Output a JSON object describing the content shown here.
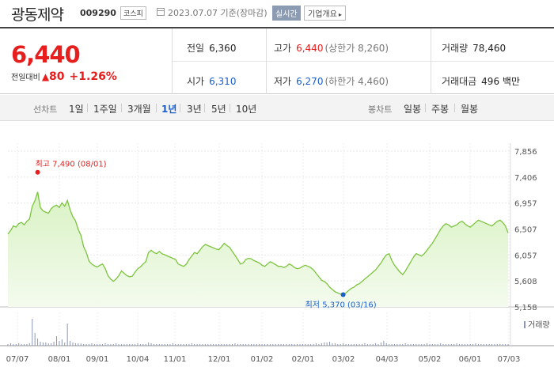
{
  "header": {
    "stock_name": "광동제약",
    "stock_code": "009290",
    "market_badge": "코스피",
    "date_text": "2023.07.07 기준(장마감)",
    "live_badge": "실시간",
    "company_badge": "기업개요"
  },
  "summary": {
    "price": "6,440",
    "change_label": "전일대비",
    "change_arrow": "▲",
    "change_amount": "80",
    "change_percent": "+1.26%",
    "prev_close_label": "전일",
    "prev_close": "6,360",
    "high_label": "고가",
    "high": "6,440",
    "upper_limit": "(상한가 8,260)",
    "volume_label": "거래량",
    "volume": "78,460",
    "open_label": "시가",
    "open": "6,310",
    "low_label": "저가",
    "low": "6,270",
    "lower_limit": "(하한가 4,460)",
    "amount_label": "거래대금",
    "amount": "496 백만"
  },
  "tabs": {
    "line_label": "선차트",
    "line_items": [
      "1일",
      "1주일",
      "3개월",
      "1년",
      "3년",
      "5년",
      "10년"
    ],
    "active_index": 3,
    "candle_label": "봉차트",
    "candle_items": [
      "일봉",
      "주봉",
      "월봉"
    ]
  },
  "colors": {
    "up": "#e61e1e",
    "down": "#1a5ecc",
    "line": "#7cc43e",
    "fill": "#d9f2c4"
  },
  "chart_data": {
    "type": "area",
    "y_ticks": [
      "7,856",
      "7,406",
      "6,957",
      "6,507",
      "6,057",
      "5,608",
      "5,158"
    ],
    "ylim": [
      5158,
      7856
    ],
    "x_ticks": [
      "07/07",
      "08/01",
      "09/01",
      "10/04",
      "11/01",
      "12/01",
      "01/02",
      "02/01",
      "03/02",
      "04/03",
      "05/02",
      "06/01",
      "07/03"
    ],
    "max_annotation": "최고 7,490 (08/01)",
    "min_annotation": "최저 5,370 (03/16)",
    "max_value": 7490,
    "min_value": 5370,
    "volume_legend": "거래량",
    "series": [
      {
        "values": [
          6420,
          6480,
          6560,
          6540,
          6600,
          6620,
          6580,
          6640,
          6680,
          6900,
          7000,
          7150,
          6880,
          6820,
          6800,
          6780,
          6860,
          6900,
          6920,
          6880,
          6960,
          6900,
          7000,
          6840,
          6720,
          6650,
          6500,
          6400,
          6200,
          6100,
          5950,
          5900,
          5870,
          5850,
          5880,
          5900,
          5820,
          5700,
          5640,
          5600,
          5640,
          5700,
          5780,
          5740,
          5700,
          5680,
          5690,
          5760,
          5820,
          5850,
          5900,
          5940,
          6100,
          6140,
          6100,
          6080,
          6120,
          6080,
          6060,
          6040,
          6020,
          6000,
          5980,
          5900,
          5880,
          5860,
          5900,
          5980,
          6040,
          6100,
          6080,
          6140,
          6200,
          6240,
          6220,
          6200,
          6180,
          6160,
          6150,
          6200,
          6260,
          6220,
          6190,
          6120,
          6050,
          5980,
          5900,
          5920,
          5980,
          6000,
          5990,
          5960,
          5940,
          5920,
          5880,
          5860,
          5900,
          5940,
          5920,
          5890,
          5860,
          5860,
          5840,
          5860,
          5900,
          5880,
          5840,
          5820,
          5830,
          5860,
          5880,
          5860,
          5840,
          5800,
          5740,
          5680,
          5620,
          5600,
          5560,
          5500,
          5460,
          5420,
          5400,
          5380,
          5370,
          5400,
          5440,
          5480,
          5500,
          5540,
          5560,
          5600,
          5640,
          5680,
          5720,
          5760,
          5800,
          5860,
          5920,
          6000,
          6060,
          6080,
          5960,
          5880,
          5820,
          5760,
          5720,
          5780,
          5860,
          5940,
          6020,
          6080,
          6060,
          6040,
          6080,
          6140,
          6200,
          6260,
          6340,
          6420,
          6500,
          6560,
          6600,
          6580,
          6540,
          6560,
          6580,
          6620,
          6640,
          6600,
          6560,
          6540,
          6580,
          6620,
          6660,
          6640,
          6620,
          6600,
          6580,
          6560,
          6600,
          6640,
          6660,
          6620,
          6560,
          6440
        ]
      }
    ]
  }
}
